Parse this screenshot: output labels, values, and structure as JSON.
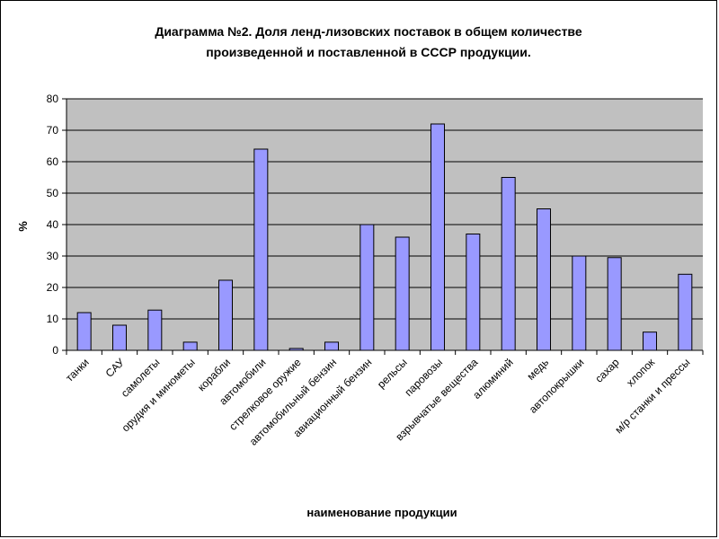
{
  "chart_data": {
    "type": "bar",
    "title_line1": "Диаграмма №2. Доля ленд-лизовских поставок в общем количестве",
    "title_line2": "произведенной и поставленной в СССР продукции.",
    "xlabel": "наименование продукции",
    "ylabel": "%",
    "ylim": [
      0,
      80
    ],
    "yticks": [
      "0",
      "10",
      "20",
      "30",
      "40",
      "50",
      "60",
      "70",
      "80"
    ],
    "grid": true,
    "legend": "none",
    "categories": [
      "танки",
      "САУ",
      "самолеты",
      "орудия и минометы",
      "корабли",
      "автомобили",
      "стрелковое оружие",
      "автомобильный бензин",
      "авиационный бензин",
      "рельсы",
      "паровозы",
      "взрывчатые вещества",
      "алюминий",
      "медь",
      "автопокрышки",
      "сахар",
      "хлопок",
      "м/р станки и прессы"
    ],
    "values": [
      12,
      8,
      12.8,
      2.6,
      22.3,
      64,
      0.6,
      2.6,
      40,
      36,
      72,
      37,
      55,
      45,
      30,
      29.5,
      5.8,
      24.2
    ],
    "colors": {
      "bar_fill": "#9999ff",
      "bar_stroke": "#000000",
      "plot_bg": "#c0c0c0",
      "grid": "#000000"
    }
  }
}
